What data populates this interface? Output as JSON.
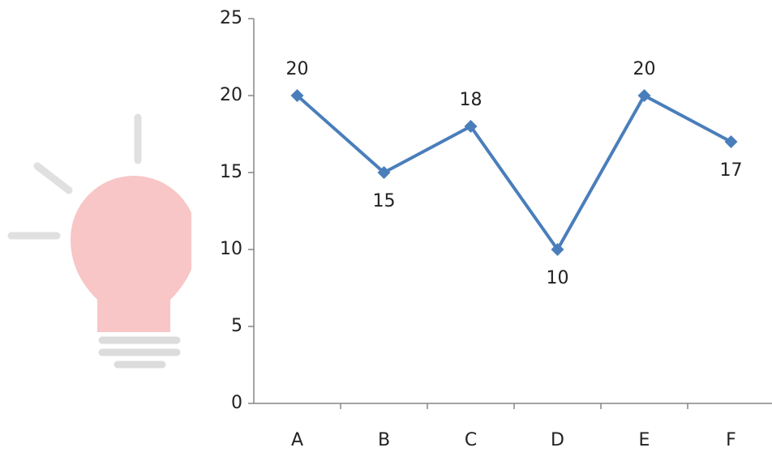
{
  "chart_data": {
    "type": "line",
    "categories": [
      "A",
      "B",
      "C",
      "D",
      "E",
      "F"
    ],
    "values": [
      20,
      15,
      18,
      10,
      20,
      17
    ],
    "color": "#4a7ebb",
    "ylim": [
      0,
      25
    ],
    "yticks": [
      0,
      5,
      10,
      15,
      20,
      25
    ],
    "grid": false
  }
}
